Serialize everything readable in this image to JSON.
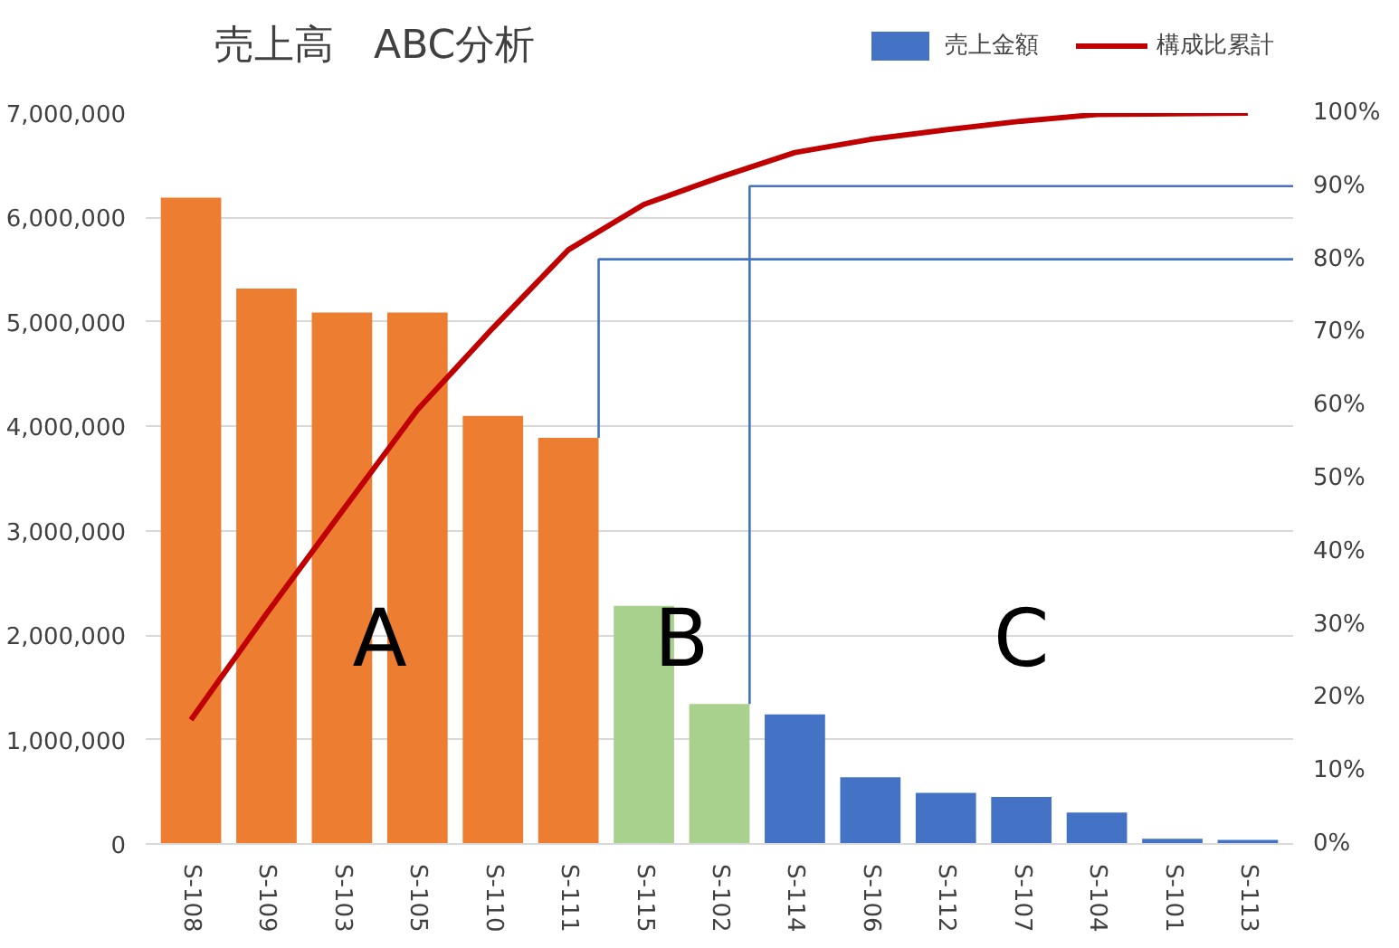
{
  "chart_data": {
    "type": "bar",
    "title": "売上高　ABC分析",
    "categories": [
      "S-108",
      "S-109",
      "S-103",
      "S-105",
      "S-110",
      "S-111",
      "S-115",
      "S-102",
      "S-114",
      "S-106",
      "S-112",
      "S-107",
      "S-104",
      "S-101",
      "S-113"
    ],
    "series": [
      {
        "name": "売上金額",
        "type": "bar",
        "color": "#4472c4",
        "colors": [
          "#ed7d31",
          "#ed7d31",
          "#ed7d31",
          "#ed7d31",
          "#ed7d31",
          "#ed7d31",
          "#a9d18e",
          "#a9d18e",
          "#4472c4",
          "#4472c4",
          "#4472c4",
          "#4472c4",
          "#4472c4",
          "#4472c4",
          "#4472c4"
        ],
        "values": [
          6190000,
          5320000,
          5090000,
          5090000,
          4100000,
          3890000,
          2280000,
          1340000,
          1240000,
          640000,
          490000,
          450000,
          300000,
          50000,
          40000
        ]
      },
      {
        "name": "構成比累計",
        "type": "line",
        "axis": "y2",
        "color": "#c00000",
        "values": [
          17.0,
          31.5,
          45.5,
          59.4,
          70.6,
          81.3,
          87.5,
          91.2,
          94.6,
          96.4,
          97.7,
          98.9,
          99.8,
          99.9,
          100
        ]
      }
    ],
    "ylim": [
      0,
      7000000
    ],
    "yticks": [
      0,
      {
        "value": 1000000,
        "label": "1,000,000"
      },
      {
        "value": 2000000,
        "label": "2,000,000"
      },
      {
        "value": 3000000,
        "label": "3,000,000"
      },
      {
        "value": 4000000,
        "label": "4,000,000"
      },
      {
        "value": 5000000,
        "label": "5,000,000"
      },
      {
        "value": 6000000,
        "label": "6,000,000"
      },
      {
        "value": 7000000,
        "label": "7,000,000"
      }
    ],
    "y2lim": [
      0,
      100
    ],
    "y2ticks": [
      {
        "value": 0,
        "label": "0%"
      },
      {
        "value": 10,
        "label": "10%"
      },
      {
        "value": 20,
        "label": "20%"
      },
      {
        "value": 30,
        "label": "30%"
      },
      {
        "value": 40,
        "label": "40%"
      },
      {
        "value": 50,
        "label": "50%"
      },
      {
        "value": 60,
        "label": "60%"
      },
      {
        "value": 70,
        "label": "70%"
      },
      {
        "value": 80,
        "label": "80%"
      },
      {
        "value": 90,
        "label": "90%"
      },
      {
        "value": 100,
        "label": "100%"
      }
    ],
    "ref_lines": [
      {
        "axis": "y2",
        "value": 80,
        "color": "#4472c4"
      },
      {
        "axis": "y2",
        "value": 90,
        "color": "#4472c4"
      }
    ],
    "annotations": [
      "A",
      "B",
      "C"
    ],
    "grid": "y",
    "legend": "top right"
  }
}
